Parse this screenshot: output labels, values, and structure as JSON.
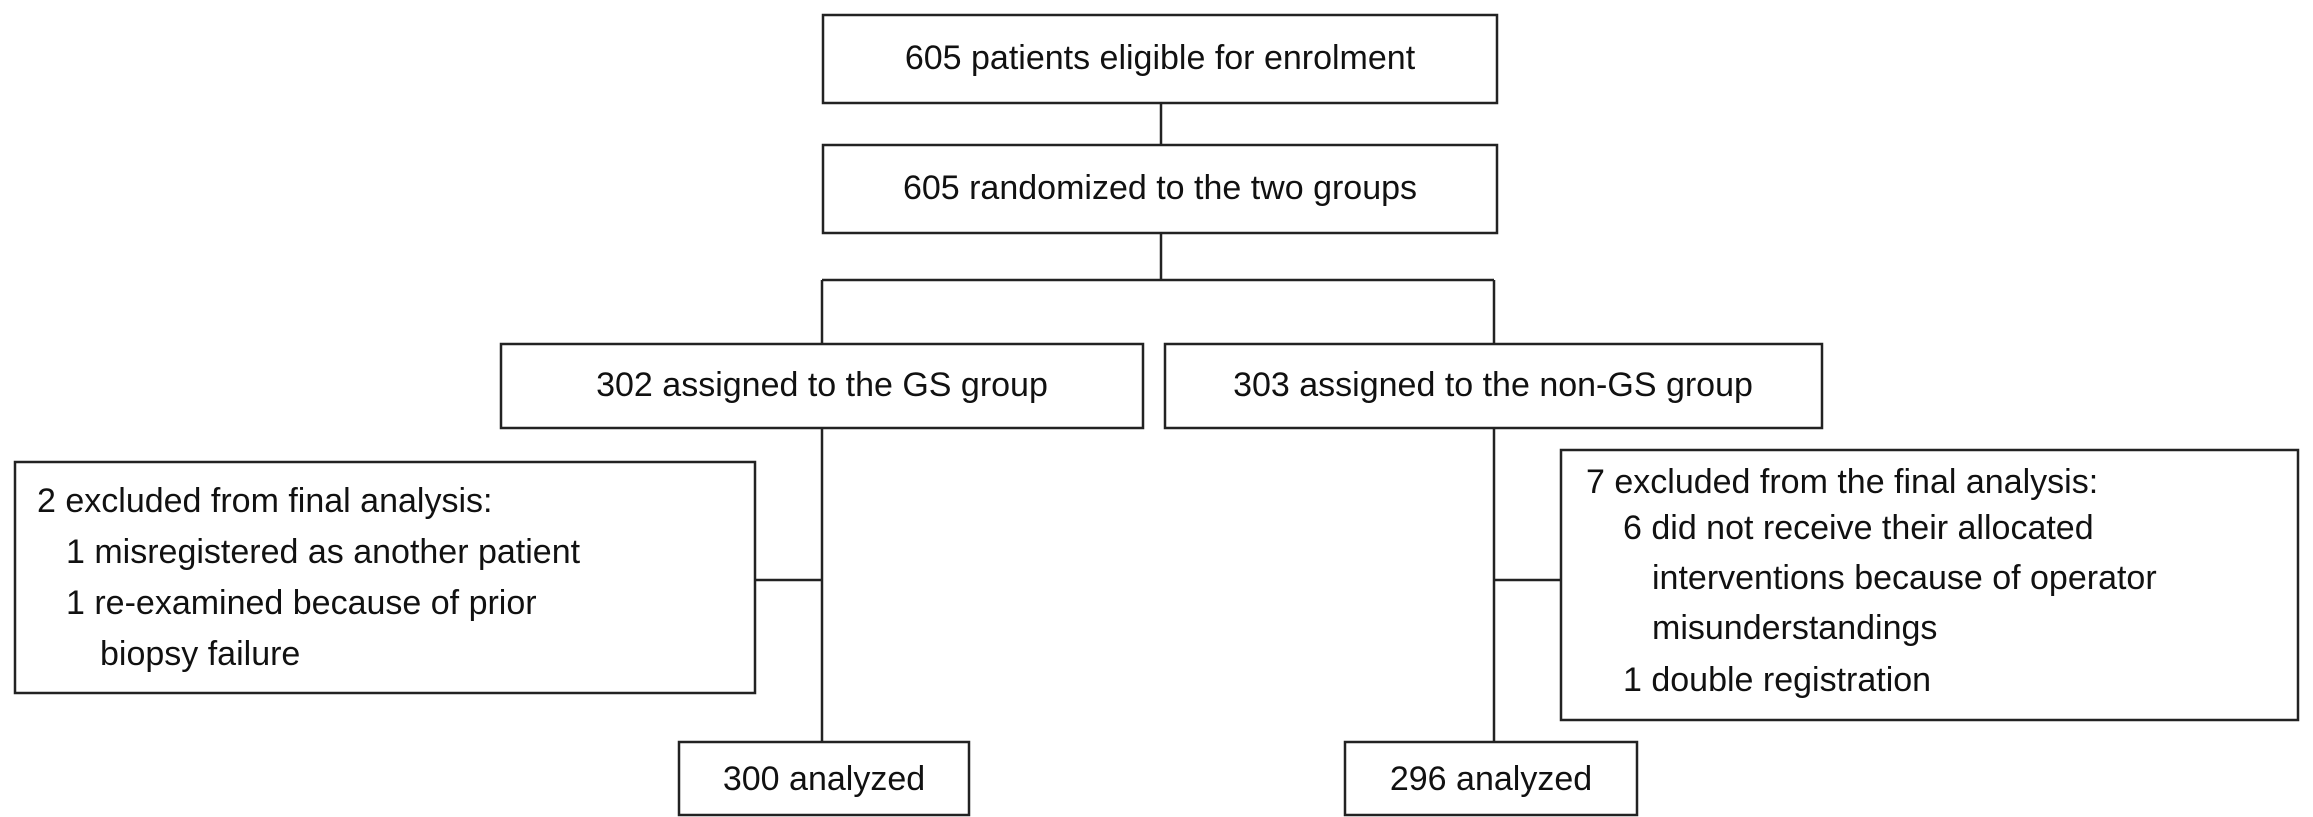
{
  "nodes": [
    {
      "label": "605 patients eligible for enrolment"
    },
    {
      "label": "605 randomized to the two groups"
    },
    {
      "label": "302 assigned to the GS group"
    },
    {
      "label": "303 assigned to the non-GS group"
    },
    {
      "label": "300 analyzed"
    },
    {
      "label": "296 analyzed"
    }
  ],
  "exclusions": [
    {
      "lines": [
        "2 excluded from final analysis:",
        "1 misregistered as another patient",
        "1 re-examined because of prior",
        "biopsy failure"
      ]
    },
    {
      "lines": [
        "7 excluded from the final analysis:",
        "6 did not receive their allocated",
        "interventions because of operator",
        "misunderstandings",
        "1 double registration"
      ]
    }
  ]
}
